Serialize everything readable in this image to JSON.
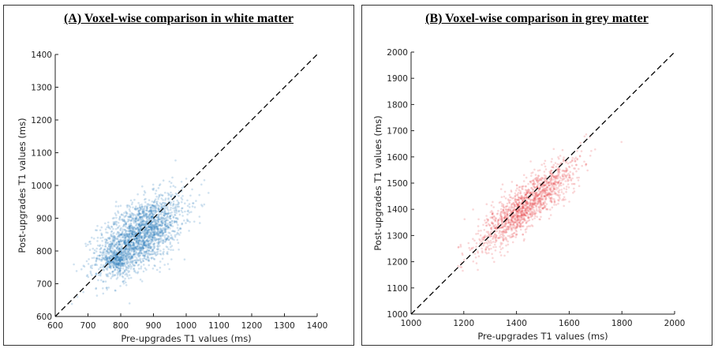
{
  "panels": [
    {
      "title": "(A) Voxel-wise comparison in white matter"
    },
    {
      "title": "(B) Voxel-wise comparison in grey matter"
    }
  ],
  "chart_data": [
    {
      "type": "scatter",
      "title": "(A) Voxel-wise comparison in white matter",
      "xlabel": "Pre-upgrades T1 values (ms)",
      "ylabel": "Post-upgrades T1 values (ms)",
      "xlim": [
        600,
        1400
      ],
      "ylim": [
        600,
        1400
      ],
      "xticks": [
        600,
        700,
        800,
        900,
        1000,
        1100,
        1200,
        1300,
        1400
      ],
      "yticks": [
        600,
        700,
        800,
        900,
        1000,
        1100,
        1200,
        1300,
        1400
      ],
      "point_color": "#2b7bba",
      "identity_line": {
        "x": [
          600,
          1400
        ],
        "y": [
          600,
          1400
        ],
        "style": "dashed",
        "color": "#000000"
      },
      "grid": false,
      "distribution": {
        "center_x": 860,
        "center_y": 850,
        "sd_x": 65,
        "sd_y": 60,
        "correlation": 0.55,
        "n_points": 2200,
        "secondary_cluster": {
          "center_x": 790,
          "center_y": 770,
          "sd_x": 20,
          "sd_y": 18,
          "n_points": 250
        }
      }
    },
    {
      "type": "scatter",
      "title": "(B) Voxel-wise comparison in grey matter",
      "xlabel": "Pre-upgrades T1 values (ms)",
      "ylabel": "Post-upgrades T1 values (ms)",
      "xlim": [
        1000,
        2000
      ],
      "ylim": [
        1000,
        2000
      ],
      "xticks": [
        1000,
        1200,
        1400,
        1600,
        1800,
        2000
      ],
      "yticks": [
        1000,
        1100,
        1200,
        1300,
        1400,
        1500,
        1600,
        1700,
        1800,
        1900,
        2000
      ],
      "point_color": "#e8474c",
      "identity_line": {
        "x": [
          1000,
          2000
        ],
        "y": [
          1000,
          2000
        ],
        "style": "dashed",
        "color": "#000000"
      },
      "grid": false,
      "distribution": {
        "center_x": 1440,
        "center_y": 1420,
        "sd_x": 95,
        "sd_y": 85,
        "correlation": 0.85,
        "n_points": 1500
      }
    }
  ]
}
